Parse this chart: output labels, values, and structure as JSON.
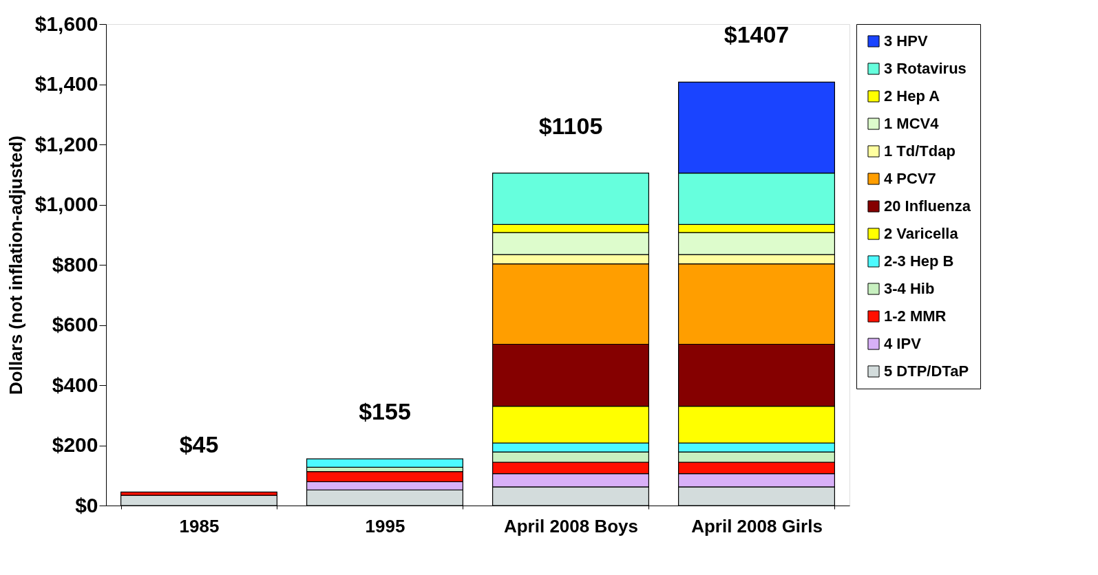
{
  "chart_data": {
    "type": "bar",
    "stacked": true,
    "ylabel": "Dollars (not inflation-adjusted)",
    "categories": [
      "1985",
      "1995",
      "April 2008 Boys",
      "April 2008 Girls"
    ],
    "series": [
      {
        "name": "5 DTP/DTaP",
        "color": "#d3dcdc",
        "values": [
          34,
          52,
          62,
          62
        ]
      },
      {
        "name": "4 IPV",
        "color": "#d8b0f8",
        "values": [
          null,
          27,
          44,
          44
        ]
      },
      {
        "name": "1-2 MMR",
        "color": "#ff1000",
        "values": [
          11,
          34,
          38,
          38
        ]
      },
      {
        "name": "3-4 Hib",
        "color": "#c8f0c0",
        "values": [
          null,
          14,
          34,
          34
        ]
      },
      {
        "name": "2-3 Hep B",
        "color": "#4dfaff",
        "values": [
          null,
          28,
          30,
          30
        ]
      },
      {
        "name": "2 Varicella",
        "color": "#ffff00",
        "values": [
          null,
          null,
          122,
          122
        ]
      },
      {
        "name": "20 Influenza",
        "color": "#850000",
        "values": [
          null,
          null,
          206,
          206
        ]
      },
      {
        "name": "4 PCV7",
        "color": "#ff9e00",
        "values": [
          null,
          null,
          267,
          267
        ]
      },
      {
        "name": "1 Td/Tdap",
        "color": "#ffffa0",
        "values": [
          null,
          null,
          31,
          31
        ]
      },
      {
        "name": "1 MCV4",
        "color": "#ddfccc",
        "values": [
          null,
          null,
          73,
          73
        ]
      },
      {
        "name": "2 Hep A",
        "color": "#ffff00",
        "values": [
          null,
          null,
          27,
          27
        ]
      },
      {
        "name": "3 Rotavirus",
        "color": "#66ffdd",
        "values": [
          null,
          null,
          171,
          171
        ]
      },
      {
        "name": "3 HPV",
        "color": "#1a44ff",
        "values": [
          null,
          null,
          null,
          302
        ]
      }
    ],
    "totals": [
      "$45",
      "$155",
      "$1105",
      "$1407"
    ],
    "ylim": [
      0,
      1600
    ],
    "yticks": [
      {
        "value": 0,
        "label": "$0"
      },
      {
        "value": 200,
        "label": "$200"
      },
      {
        "value": 400,
        "label": "$400"
      },
      {
        "value": 600,
        "label": "$600"
      },
      {
        "value": 800,
        "label": "$800"
      },
      {
        "value": 1000,
        "label": "$1,000"
      },
      {
        "value": 1200,
        "label": "$1,200"
      },
      {
        "value": 1400,
        "label": "$1,400"
      },
      {
        "value": 1600,
        "label": "$1,600"
      }
    ],
    "grid": false,
    "legend": "top right"
  }
}
